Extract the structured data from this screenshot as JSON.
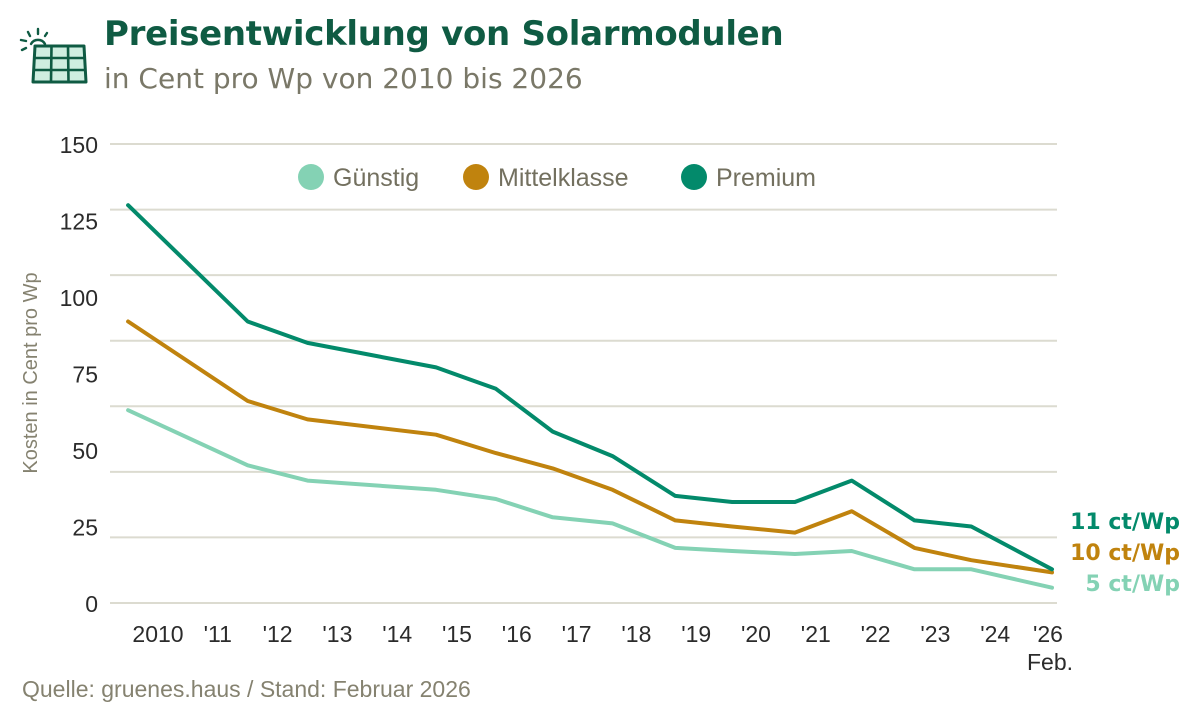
{
  "header": {
    "title": "Preisentwicklung von Solarmodulen",
    "subtitle": "in Cent pro Wp von 2010 bis 2026",
    "logo_icon": "solar-panel-icon"
  },
  "footer": {
    "source": "Quelle: gruenes.haus  /  Stand: Februar 2026"
  },
  "chart_data": {
    "type": "line",
    "title": "Preisentwicklung von Solarmodulen",
    "subtitle": "in Cent pro Wp von 2010 bis 2026",
    "xlabel": "",
    "ylabel": "Kosten in Cent  pro Wp",
    "ylim": [
      0,
      150
    ],
    "yticks": [
      0,
      25,
      50,
      75,
      100,
      125,
      150
    ],
    "grid": true,
    "grid_lines": 8,
    "legend_position": "top-center",
    "x_tick_labels": [
      "2010",
      "'11",
      "'12",
      "'13",
      "'14",
      "'15",
      "'16",
      "'17",
      "'18",
      "'19",
      "'20",
      "'21",
      "'22",
      "'23",
      "'24",
      "'26"
    ],
    "x_tick_sublabel": {
      "tick": "'26",
      "text": "Feb."
    },
    "x": [
      -0.5,
      1.5,
      2.5,
      4.65,
      5.65,
      6.6,
      7.6,
      8.65,
      9.6,
      10.65,
      11.6,
      12.65,
      13.6,
      15.0
    ],
    "x_note": "x positions expressed as index on the tick-label axis (0 = 2010, 14 = '24, 15 = '26 Feb.)",
    "series": [
      {
        "name": "Günstig",
        "color": "#84d2b4",
        "values": [
          63,
          45,
          40,
          37,
          34,
          28,
          26,
          18,
          17,
          16,
          17,
          11,
          11,
          5
        ],
        "end_label": "5 ct/Wp"
      },
      {
        "name": "Mittelklasse",
        "color": "#c0830e",
        "values": [
          92,
          66,
          60,
          55,
          49,
          44,
          37,
          27,
          25,
          23,
          30,
          18,
          14,
          10
        ],
        "end_label": "10 ct/Wp"
      },
      {
        "name": "Premium",
        "color": "#038a6b",
        "values": [
          130,
          92,
          85,
          77,
          70,
          56,
          48,
          35,
          33,
          33,
          40,
          27,
          25,
          11
        ],
        "end_label": "11 ct/Wp"
      }
    ]
  }
}
